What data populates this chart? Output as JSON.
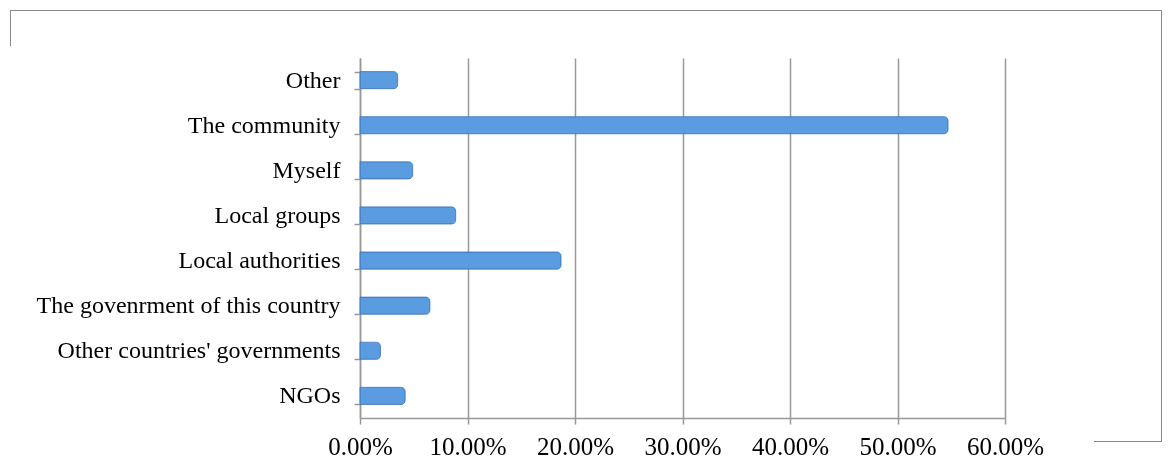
{
  "chart_data": {
    "type": "bar",
    "orientation": "horizontal",
    "categories": [
      "Other",
      "The community",
      "Myself",
      "Local groups",
      "Local authorities",
      "The govenrment of this country",
      "Other countries' governments",
      "NGOs"
    ],
    "values": [
      3.5,
      54.7,
      4.9,
      8.9,
      18.7,
      6.5,
      1.9,
      4.2
    ],
    "color": "#5b9be0",
    "xlim": [
      0,
      60
    ],
    "xticks": [
      {
        "value": 0,
        "label": "0.00%"
      },
      {
        "value": 10,
        "label": "10.00%"
      },
      {
        "value": 20,
        "label": "20.00%"
      },
      {
        "value": 30,
        "label": "30.00%"
      },
      {
        "value": 40,
        "label": "40.00%"
      },
      {
        "value": 50,
        "label": "50.00%"
      },
      {
        "value": 60,
        "label": "60.00%"
      }
    ],
    "grid": "x"
  }
}
